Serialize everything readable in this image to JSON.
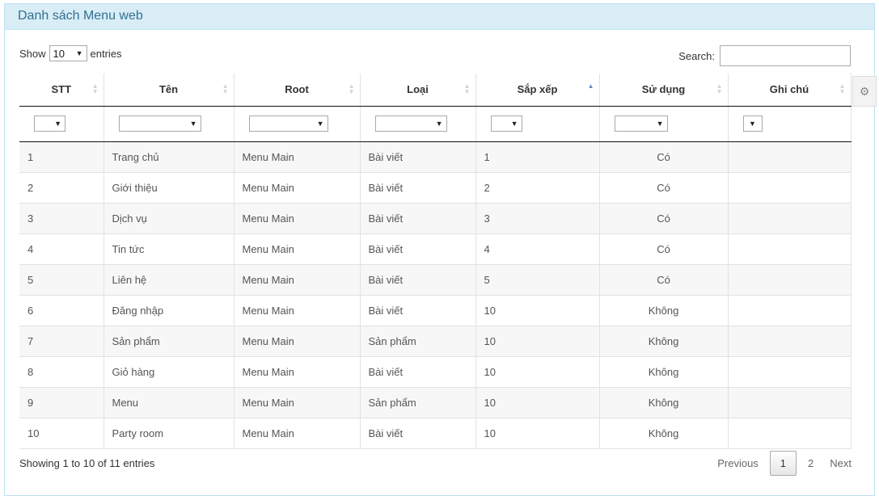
{
  "panel": {
    "title": "Danh sách Menu web"
  },
  "length": {
    "prefix": "Show",
    "value": "10",
    "suffix": "entries"
  },
  "search": {
    "label": "Search:",
    "value": ""
  },
  "columns": [
    {
      "label": "STT"
    },
    {
      "label": "Tên"
    },
    {
      "label": "Root"
    },
    {
      "label": "Loại"
    },
    {
      "label": "Sắp xếp"
    },
    {
      "label": "Sử dụng"
    },
    {
      "label": "Ghi chú"
    }
  ],
  "rows": [
    [
      "1",
      "Trang chủ",
      "Menu Main",
      "Bài viết",
      "1",
      "Có",
      ""
    ],
    [
      "2",
      "Giới thiệu",
      "Menu Main",
      "Bài viết",
      "2",
      "Có",
      ""
    ],
    [
      "3",
      "Dịch vụ",
      "Menu Main",
      "Bài viết",
      "3",
      "Có",
      ""
    ],
    [
      "4",
      "Tin tức",
      "Menu Main",
      "Bài viết",
      "4",
      "Có",
      ""
    ],
    [
      "5",
      "Liên hệ",
      "Menu Main",
      "Bài viết",
      "5",
      "Có",
      ""
    ],
    [
      "6",
      "Đăng nhập",
      "Menu Main",
      "Bài viết",
      "10",
      "Không",
      ""
    ],
    [
      "7",
      "Sản phẩm",
      "Menu Main",
      "Sản phẩm",
      "10",
      "Không",
      ""
    ],
    [
      "8",
      "Giỏ hàng",
      "Menu Main",
      "Bài viết",
      "10",
      "Không",
      ""
    ],
    [
      "9",
      "Menu",
      "Menu Main",
      "Sản phẩm",
      "10",
      "Không",
      ""
    ],
    [
      "10",
      "Party room",
      "Menu Main",
      "Bài viết",
      "10",
      "Không",
      ""
    ]
  ],
  "info": "Showing 1 to 10 of 11 entries",
  "pagination": {
    "previous": "Previous",
    "pages": [
      "1",
      "2"
    ],
    "current": "1",
    "next": "Next"
  },
  "icons": {
    "sort": "sort-icon",
    "settings": "settings-icon",
    "dropdown": "chevron-down-icon"
  },
  "colors": {
    "heading_bg": "#d9edf7",
    "heading_text": "#31708f",
    "sort_active": "#6e84c8"
  }
}
